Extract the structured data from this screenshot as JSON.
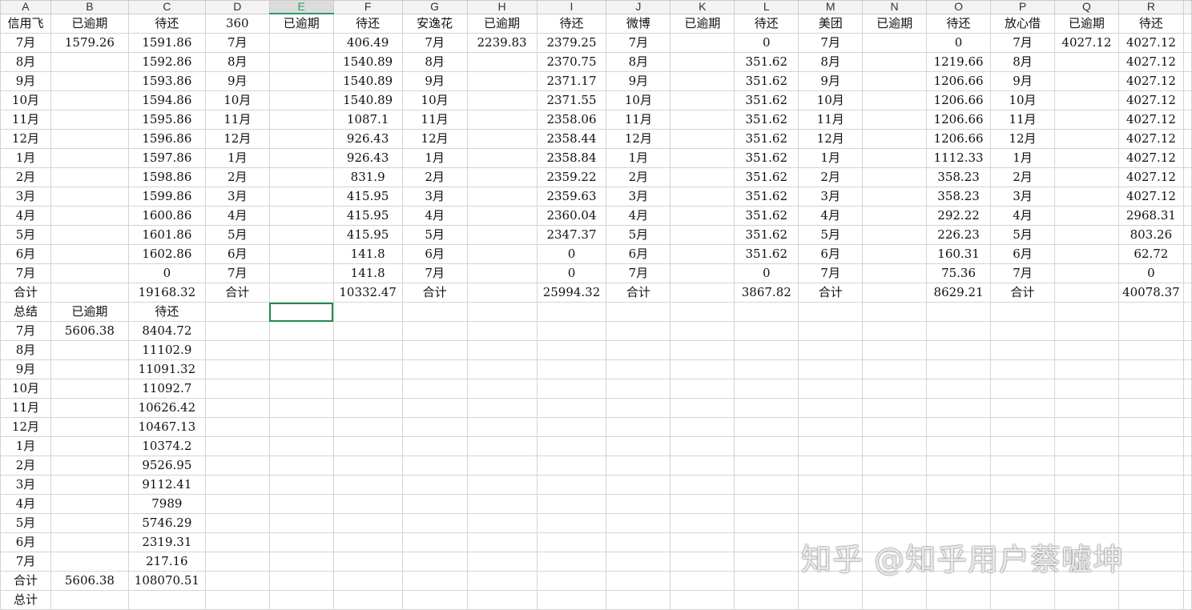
{
  "columns": [
    "A",
    "B",
    "C",
    "D",
    "E",
    "F",
    "G",
    "H",
    "I",
    "J",
    "K",
    "L",
    "M",
    "N",
    "O",
    "P",
    "Q",
    "R",
    ""
  ],
  "selected_column": "E",
  "selected_cell": {
    "row": 16,
    "col": "E"
  },
  "rows": [
    [
      "信用飞",
      "已逾期",
      "待还",
      "360",
      "已逾期",
      "待还",
      "安逸花",
      "已逾期",
      "待还",
      "微博",
      "已逾期",
      "待还",
      "美团",
      "已逾期",
      "待还",
      "放心借",
      "已逾期",
      "待还",
      ""
    ],
    [
      "7月",
      "1579.26",
      "1591.86",
      "7月",
      "",
      "406.49",
      "7月",
      "2239.83",
      "2379.25",
      "7月",
      "",
      "0",
      "7月",
      "",
      "0",
      "7月",
      "4027.12",
      "4027.12",
      ""
    ],
    [
      "8月",
      "",
      "1592.86",
      "8月",
      "",
      "1540.89",
      "8月",
      "",
      "2370.75",
      "8月",
      "",
      "351.62",
      "8月",
      "",
      "1219.66",
      "8月",
      "",
      "4027.12",
      ""
    ],
    [
      "9月",
      "",
      "1593.86",
      "9月",
      "",
      "1540.89",
      "9月",
      "",
      "2371.17",
      "9月",
      "",
      "351.62",
      "9月",
      "",
      "1206.66",
      "9月",
      "",
      "4027.12",
      ""
    ],
    [
      "10月",
      "",
      "1594.86",
      "10月",
      "",
      "1540.89",
      "10月",
      "",
      "2371.55",
      "10月",
      "",
      "351.62",
      "10月",
      "",
      "1206.66",
      "10月",
      "",
      "4027.12",
      ""
    ],
    [
      "11月",
      "",
      "1595.86",
      "11月",
      "",
      "1087.1",
      "11月",
      "",
      "2358.06",
      "11月",
      "",
      "351.62",
      "11月",
      "",
      "1206.66",
      "11月",
      "",
      "4027.12",
      ""
    ],
    [
      "12月",
      "",
      "1596.86",
      "12月",
      "",
      "926.43",
      "12月",
      "",
      "2358.44",
      "12月",
      "",
      "351.62",
      "12月",
      "",
      "1206.66",
      "12月",
      "",
      "4027.12",
      ""
    ],
    [
      "1月",
      "",
      "1597.86",
      "1月",
      "",
      "926.43",
      "1月",
      "",
      "2358.84",
      "1月",
      "",
      "351.62",
      "1月",
      "",
      "1112.33",
      "1月",
      "",
      "4027.12",
      ""
    ],
    [
      "2月",
      "",
      "1598.86",
      "2月",
      "",
      "831.9",
      "2月",
      "",
      "2359.22",
      "2月",
      "",
      "351.62",
      "2月",
      "",
      "358.23",
      "2月",
      "",
      "4027.12",
      ""
    ],
    [
      "3月",
      "",
      "1599.86",
      "3月",
      "",
      "415.95",
      "3月",
      "",
      "2359.63",
      "3月",
      "",
      "351.62",
      "3月",
      "",
      "358.23",
      "3月",
      "",
      "4027.12",
      ""
    ],
    [
      "4月",
      "",
      "1600.86",
      "4月",
      "",
      "415.95",
      "4月",
      "",
      "2360.04",
      "4月",
      "",
      "351.62",
      "4月",
      "",
      "292.22",
      "4月",
      "",
      "2968.31",
      ""
    ],
    [
      "5月",
      "",
      "1601.86",
      "5月",
      "",
      "415.95",
      "5月",
      "",
      "2347.37",
      "5月",
      "",
      "351.62",
      "5月",
      "",
      "226.23",
      "5月",
      "",
      "803.26",
      ""
    ],
    [
      "6月",
      "",
      "1602.86",
      "6月",
      "",
      "141.8",
      "6月",
      "",
      "0",
      "6月",
      "",
      "351.62",
      "6月",
      "",
      "160.31",
      "6月",
      "",
      "62.72",
      ""
    ],
    [
      "7月",
      "",
      "0",
      "7月",
      "",
      "141.8",
      "7月",
      "",
      "0",
      "7月",
      "",
      "0",
      "7月",
      "",
      "75.36",
      "7月",
      "",
      "0",
      ""
    ],
    [
      "合计",
      "",
      "19168.32",
      "合计",
      "",
      "10332.47",
      "合计",
      "",
      "25994.32",
      "合计",
      "",
      "3867.82",
      "合计",
      "",
      "8629.21",
      "合计",
      "",
      "40078.37",
      ""
    ],
    [
      "总结",
      "已逾期",
      "待还",
      "",
      "",
      "",
      "",
      "",
      "",
      "",
      "",
      "",
      "",
      "",
      "",
      "",
      "",
      "",
      ""
    ],
    [
      "7月",
      "5606.38",
      "8404.72",
      "",
      "",
      "",
      "",
      "",
      "",
      "",
      "",
      "",
      "",
      "",
      "",
      "",
      "",
      "",
      ""
    ],
    [
      "8月",
      "",
      "11102.9",
      "",
      "",
      "",
      "",
      "",
      "",
      "",
      "",
      "",
      "",
      "",
      "",
      "",
      "",
      "",
      ""
    ],
    [
      "9月",
      "",
      "11091.32",
      "",
      "",
      "",
      "",
      "",
      "",
      "",
      "",
      "",
      "",
      "",
      "",
      "",
      "",
      "",
      ""
    ],
    [
      "10月",
      "",
      "11092.7",
      "",
      "",
      "",
      "",
      "",
      "",
      "",
      "",
      "",
      "",
      "",
      "",
      "",
      "",
      "",
      ""
    ],
    [
      "11月",
      "",
      "10626.42",
      "",
      "",
      "",
      "",
      "",
      "",
      "",
      "",
      "",
      "",
      "",
      "",
      "",
      "",
      "",
      ""
    ],
    [
      "12月",
      "",
      "10467.13",
      "",
      "",
      "",
      "",
      "",
      "",
      "",
      "",
      "",
      "",
      "",
      "",
      "",
      "",
      "",
      ""
    ],
    [
      "1月",
      "",
      "10374.2",
      "",
      "",
      "",
      "",
      "",
      "",
      "",
      "",
      "",
      "",
      "",
      "",
      "",
      "",
      "",
      ""
    ],
    [
      "2月",
      "",
      "9526.95",
      "",
      "",
      "",
      "",
      "",
      "",
      "",
      "",
      "",
      "",
      "",
      "",
      "",
      "",
      "",
      ""
    ],
    [
      "3月",
      "",
      "9112.41",
      "",
      "",
      "",
      "",
      "",
      "",
      "",
      "",
      "",
      "",
      "",
      "",
      "",
      "",
      "",
      ""
    ],
    [
      "4月",
      "",
      "7989",
      "",
      "",
      "",
      "",
      "",
      "",
      "",
      "",
      "",
      "",
      "",
      "",
      "",
      "",
      "",
      ""
    ],
    [
      "5月",
      "",
      "5746.29",
      "",
      "",
      "",
      "",
      "",
      "",
      "",
      "",
      "",
      "",
      "",
      "",
      "",
      "",
      "",
      ""
    ],
    [
      "6月",
      "",
      "2319.31",
      "",
      "",
      "",
      "",
      "",
      "",
      "",
      "",
      "",
      "",
      "",
      "",
      "",
      "",
      "",
      ""
    ],
    [
      "7月",
      "",
      "217.16",
      "",
      "",
      "",
      "",
      "",
      "",
      "",
      "",
      "",
      "",
      "",
      "",
      "",
      "",
      "",
      ""
    ],
    [
      "合计",
      "5606.38",
      "108070.51",
      "",
      "",
      "",
      "",
      "",
      "",
      "",
      "",
      "",
      "",
      "",
      "",
      "",
      "",
      "",
      ""
    ],
    [
      "总计",
      "",
      "",
      "",
      "",
      "",
      "",
      "",
      "",
      "",
      "",
      "",
      "",
      "",
      "",
      "",
      "",
      "",
      ""
    ]
  ],
  "watermark": "知乎 @知乎用户蔡嘘坤",
  "colors": {
    "accent": "#1e8a4f",
    "grid": "#d4d4d4",
    "header_bg": "#f3f3f3"
  }
}
